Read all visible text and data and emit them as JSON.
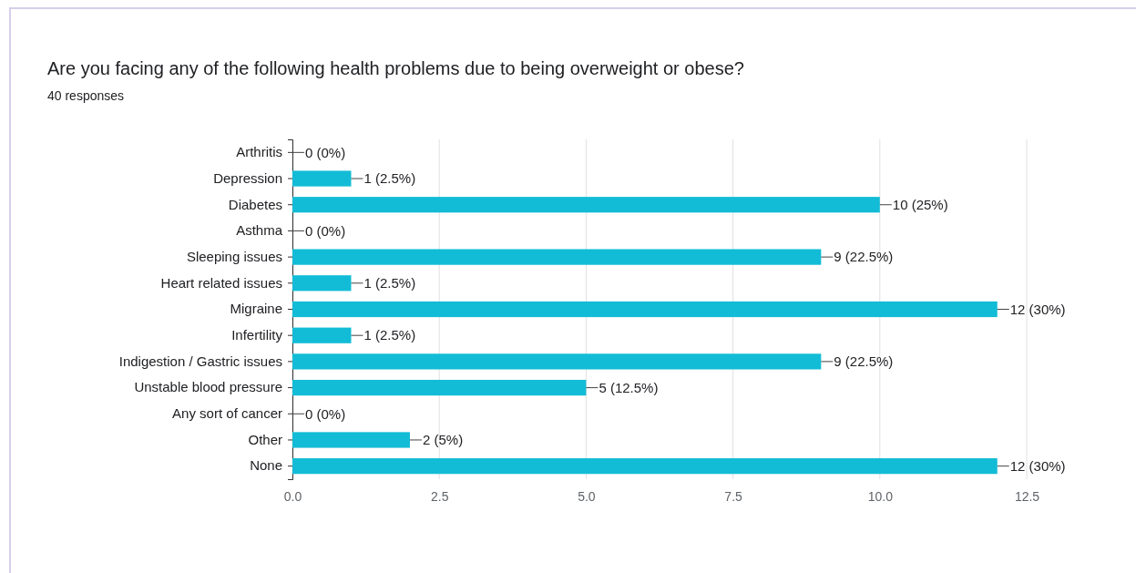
{
  "chart_data": {
    "type": "bar",
    "orientation": "horizontal",
    "title": "Are you facing any of the following health problems due to being overweight or obese?",
    "subtitle": "40 responses",
    "categories": [
      "Arthritis",
      "Depression",
      "Diabetes",
      "Asthma",
      "Sleeping issues",
      "Heart related issues",
      "Migraine",
      "Infertility",
      "Indigestion / Gastric issues",
      "Unstable blood pressure",
      "Any sort of cancer",
      "Other",
      "None"
    ],
    "values": [
      0,
      1,
      10,
      0,
      9,
      1,
      12,
      1,
      9,
      5,
      0,
      2,
      12
    ],
    "value_labels": [
      "0 (0%)",
      "1 (2.5%)",
      "10 (25%)",
      "0 (0%)",
      "9 (22.5%)",
      "1 (2.5%)",
      "12 (30%)",
      "1 (2.5%)",
      "9 (22.5%)",
      "5 (12.5%)",
      "0 (0%)",
      "2 (5%)",
      "12 (30%)"
    ],
    "color": "#12bcd6",
    "xlim": [
      0,
      12.5
    ],
    "xticks": [
      {
        "value": 0,
        "label": "0.0"
      },
      {
        "value": 2.5,
        "label": "2.5"
      },
      {
        "value": 5,
        "label": "5.0"
      },
      {
        "value": 7.5,
        "label": "7.5"
      },
      {
        "value": 10,
        "label": "10.0"
      },
      {
        "value": 12.5,
        "label": "12.5"
      }
    ],
    "grid": "x"
  }
}
